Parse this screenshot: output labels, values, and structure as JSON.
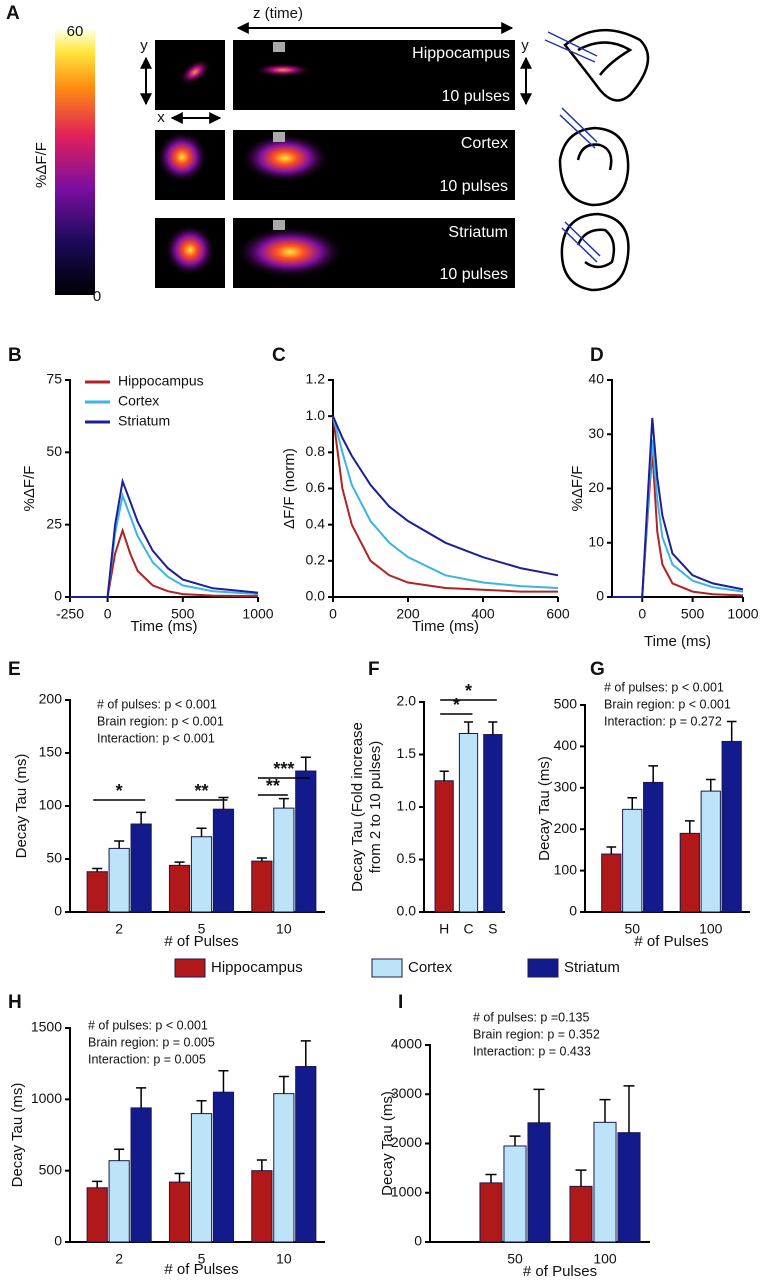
{
  "panel_a": {
    "panel": "A",
    "colorbar": {
      "label": "%ΔF/F",
      "lim": [
        0,
        60
      ],
      "ticks": [
        0,
        60
      ]
    },
    "axis_labels": {
      "z": "z (time)",
      "y": "y",
      "x": "x",
      "y_right": "y"
    },
    "rows": [
      {
        "region": "Hippocampus",
        "pulses": "10 pulses"
      },
      {
        "region": "Cortex",
        "pulses": "10 pulses"
      },
      {
        "region": "Striatum",
        "pulses": "10 pulses"
      }
    ]
  },
  "chart_data": [
    {
      "type": "line",
      "panel": "B",
      "xlabel": "Time (ms)",
      "ylabel": "%ΔF/F",
      "xlim": [
        -250,
        1000
      ],
      "xticks": [
        -250,
        0,
        500,
        1000
      ],
      "ylim": [
        0,
        75
      ],
      "yticks": [
        0,
        25,
        50,
        75
      ],
      "legend": "upper left",
      "x": [
        -250,
        0,
        50,
        100,
        150,
        200,
        300,
        400,
        500,
        700,
        1000
      ],
      "series": [
        {
          "name": "Hippocampus",
          "color": "#b22222",
          "values": [
            0,
            0,
            15,
            23,
            15,
            9,
            4,
            2,
            1,
            0.5,
            0.3
          ]
        },
        {
          "name": "Cortex",
          "color": "#3ab4e3",
          "values": [
            0,
            0,
            22,
            35,
            28,
            21,
            12,
            7,
            4,
            2,
            1
          ]
        },
        {
          "name": "Striatum",
          "color": "#1c1f9a",
          "values": [
            0,
            0,
            25,
            40,
            33,
            26,
            16,
            10,
            6,
            3,
            1.5
          ]
        }
      ]
    },
    {
      "type": "line",
      "panel": "C",
      "xlabel": "Time (ms)",
      "ylabel": "ΔF/F (norm)",
      "xlim": [
        0,
        600
      ],
      "xticks": [
        0,
        200,
        400,
        600
      ],
      "ylim": [
        0,
        1.2
      ],
      "yticks": [
        {
          "value": 0,
          "label": "0.0"
        },
        0.2,
        0.4,
        0.6,
        0.8,
        {
          "value": 1,
          "label": "1.0"
        },
        1.2
      ],
      "x": [
        0,
        25,
        50,
        100,
        150,
        200,
        300,
        400,
        500,
        600
      ],
      "series": [
        {
          "name": "Hippocampus",
          "color": "#b22222",
          "values": [
            1,
            0.6,
            0.4,
            0.2,
            0.12,
            0.08,
            0.05,
            0.04,
            0.03,
            0.03
          ]
        },
        {
          "name": "Cortex",
          "color": "#3ab4e3",
          "values": [
            1,
            0.8,
            0.62,
            0.42,
            0.3,
            0.22,
            0.12,
            0.08,
            0.06,
            0.05
          ]
        },
        {
          "name": "Striatum",
          "color": "#1c1f9a",
          "values": [
            1,
            0.88,
            0.78,
            0.62,
            0.5,
            0.42,
            0.3,
            0.22,
            0.16,
            0.12
          ]
        }
      ]
    },
    {
      "type": "line",
      "panel": "D",
      "xlabel": "Time (ms)",
      "ylabel": "%ΔF/F",
      "xlim": [
        -300,
        1000
      ],
      "xticks": [
        0,
        500,
        1000
      ],
      "ylim": [
        0,
        40
      ],
      "yticks": [
        0,
        10,
        20,
        30,
        40
      ],
      "x": [
        -300,
        0,
        50,
        100,
        150,
        200,
        300,
        500,
        700,
        1000
      ],
      "series": [
        {
          "name": "Hippocampus",
          "color": "#b22222",
          "values": [
            0,
            0,
            14,
            27,
            12,
            6,
            2.5,
            1,
            0.5,
            0.3
          ]
        },
        {
          "name": "Cortex",
          "color": "#3ab4e3",
          "values": [
            0,
            0,
            15,
            29,
            18,
            11,
            6,
            3,
            1.8,
            1
          ]
        },
        {
          "name": "Striatum",
          "color": "#1c1f9a",
          "values": [
            0,
            0,
            17,
            33,
            22,
            15,
            8,
            4,
            2.5,
            1.4
          ]
        }
      ]
    },
    {
      "type": "bar",
      "panel": "E",
      "xlabel": "# of Pulses",
      "ylabel": "Decay Tau (ms)",
      "ylim": [
        0,
        200
      ],
      "yticks": [
        0,
        50,
        100,
        150,
        200
      ],
      "legend": "below",
      "stats": [
        "# of pulses: p < 0.001",
        "Brain region: p < 0.001",
        "Interaction: p < 0.001"
      ],
      "significance": [
        "*",
        "**",
        "**",
        "***"
      ],
      "categories": [
        "2",
        "5",
        "10"
      ],
      "series": [
        {
          "name": "Hippocampus",
          "color": "#b0181a",
          "values": [
            38,
            44,
            48
          ],
          "errors": [
            3,
            3,
            3
          ]
        },
        {
          "name": "Cortex",
          "color": "#bde3f8",
          "values": [
            60,
            71,
            98
          ],
          "errors": [
            7,
            8,
            9
          ]
        },
        {
          "name": "Striatum",
          "color": "#121a8c",
          "values": [
            83,
            97,
            133
          ],
          "errors": [
            11,
            11,
            13
          ]
        }
      ]
    },
    {
      "type": "bar",
      "panel": "F",
      "ylabel": [
        "Decay Tau (Fold increase",
        "from 2 to 10 pulses)"
      ],
      "ylim": [
        0,
        2
      ],
      "yticks": [
        {
          "value": 0,
          "label": "0.0"
        },
        0.5,
        {
          "value": 1,
          "label": "1.0"
        },
        1.5,
        {
          "value": 2,
          "label": "2.0"
        }
      ],
      "significance": [
        "*",
        "*"
      ],
      "categories": [
        "H",
        "C",
        "S"
      ],
      "values": [
        1.25,
        1.7,
        1.69
      ],
      "errors": [
        0.09,
        0.11,
        0.12
      ],
      "colors": [
        "#b0181a",
        "#bde3f8",
        "#121a8c"
      ]
    },
    {
      "type": "bar",
      "panel": "G",
      "xlabel": "# of Pulses",
      "ylabel": "Decay Tau (ms)",
      "ylim": [
        0,
        500
      ],
      "yticks": [
        0,
        100,
        200,
        300,
        400,
        500
      ],
      "stats": [
        "# of pulses: p < 0.001",
        "Brain region: p < 0.001",
        "Interaction: p = 0.272"
      ],
      "categories": [
        "50",
        "100"
      ],
      "series": [
        {
          "name": "Hippocampus",
          "color": "#b0181a",
          "values": [
            140,
            190
          ],
          "errors": [
            17,
            30
          ]
        },
        {
          "name": "Cortex",
          "color": "#bde3f8",
          "values": [
            248,
            292
          ],
          "errors": [
            28,
            28
          ]
        },
        {
          "name": "Striatum",
          "color": "#121a8c",
          "values": [
            313,
            412
          ],
          "errors": [
            40,
            48
          ]
        }
      ]
    },
    {
      "type": "bar",
      "panel": "H",
      "xlabel": "# of Pulses",
      "ylabel": "Decay Tau (ms)",
      "ylim": [
        0,
        1500
      ],
      "yticks": [
        0,
        500,
        1000,
        1500
      ],
      "stats": [
        "# of pulses: p < 0.001",
        "Brain region: p = 0.005",
        "Interaction: p = 0.005"
      ],
      "categories": [
        "2",
        "5",
        "10"
      ],
      "series": [
        {
          "name": "Hippocampus",
          "color": "#b0181a",
          "values": [
            380,
            420,
            500
          ],
          "errors": [
            45,
            60,
            75
          ]
        },
        {
          "name": "Cortex",
          "color": "#bde3f8",
          "values": [
            570,
            900,
            1040
          ],
          "errors": [
            80,
            90,
            120
          ]
        },
        {
          "name": "Striatum",
          "color": "#121a8c",
          "values": [
            940,
            1050,
            1230
          ],
          "errors": [
            140,
            150,
            180
          ]
        }
      ]
    },
    {
      "type": "bar",
      "panel": "I",
      "xlabel": "# of Pulses",
      "ylabel": "Decay Tau (ms)",
      "ylim": [
        0,
        4000
      ],
      "yticks": [
        0,
        1000,
        2000,
        3000,
        4000
      ],
      "stats": [
        "# of pulses: p =0.135",
        "Brain region: p = 0.352",
        "Interaction: p = 0.433"
      ],
      "categories": [
        "50",
        "100"
      ],
      "series": [
        {
          "name": "Hippocampus",
          "color": "#b0181a",
          "values": [
            1200,
            1130
          ],
          "errors": [
            170,
            330
          ]
        },
        {
          "name": "Cortex",
          "color": "#bde3f8",
          "values": [
            1950,
            2430
          ],
          "errors": [
            200,
            460
          ]
        },
        {
          "name": "Striatum",
          "color": "#121a8c",
          "values": [
            2420,
            2220
          ],
          "errors": [
            680,
            950
          ]
        }
      ]
    }
  ]
}
